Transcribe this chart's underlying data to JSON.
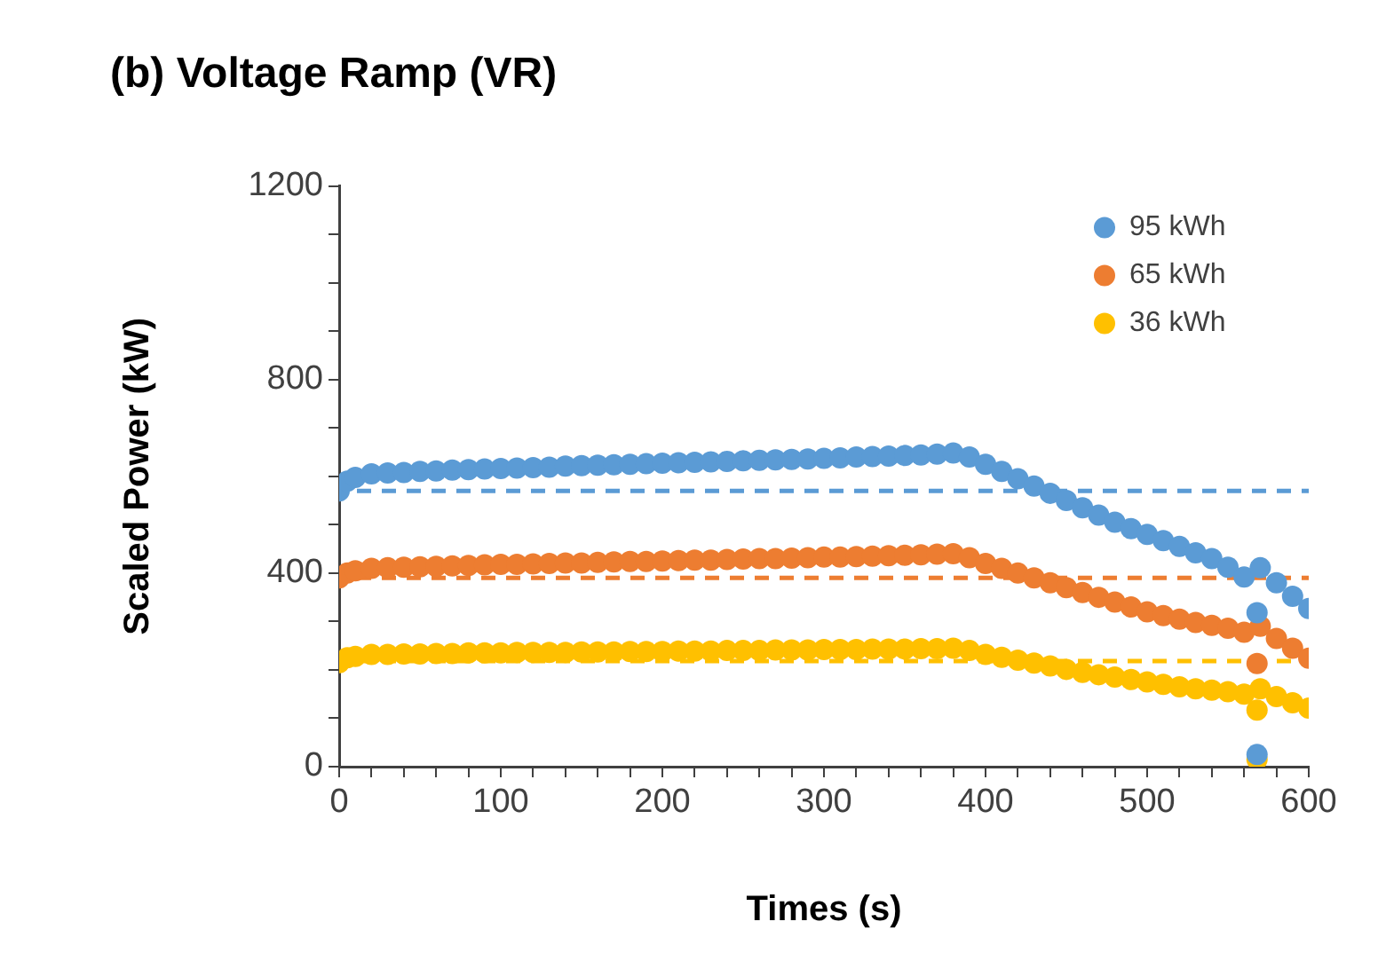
{
  "chart_data": {
    "type": "scatter",
    "title": "(b) Voltage Ramp (VR)",
    "xlabel": "Times (s)",
    "ylabel": "Scaled Power (kW)",
    "x": [
      0,
      5,
      10,
      20,
      30,
      40,
      50,
      60,
      70,
      80,
      90,
      100,
      110,
      120,
      130,
      140,
      150,
      160,
      170,
      180,
      190,
      200,
      210,
      220,
      230,
      240,
      250,
      260,
      270,
      280,
      290,
      300,
      310,
      320,
      330,
      340,
      350,
      360,
      370,
      380,
      390,
      400,
      410,
      420,
      430,
      440,
      450,
      460,
      470,
      480,
      490,
      500,
      510,
      520,
      530,
      540,
      550,
      560,
      568,
      568,
      570,
      580,
      590,
      600
    ],
    "series": [
      {
        "name": "95 kWh",
        "color": "#5b9bd5",
        "values": [
          570,
          590,
          598,
          605,
          607,
          608,
          610,
          611,
          613,
          614,
          615,
          616,
          617,
          618,
          619,
          621,
          622,
          623,
          624,
          625,
          626,
          627,
          628,
          629,
          630,
          631,
          632,
          633,
          634,
          635,
          636,
          637,
          638,
          640,
          641,
          642,
          643,
          644,
          646,
          648,
          640,
          625,
          610,
          595,
          580,
          565,
          550,
          535,
          520,
          505,
          492,
          480,
          467,
          455,
          442,
          430,
          412,
          392,
          318,
          25,
          411,
          380,
          352,
          327
        ]
      },
      {
        "name": "65 kWh",
        "color": "#ed7d31",
        "values": [
          390,
          400,
          405,
          410,
          411,
          412,
          413,
          414,
          415,
          416,
          417,
          418,
          418,
          419,
          420,
          421,
          421,
          422,
          423,
          424,
          424,
          425,
          426,
          427,
          427,
          428,
          429,
          430,
          430,
          431,
          432,
          433,
          433,
          434,
          435,
          436,
          437,
          438,
          439,
          440,
          432,
          420,
          410,
          400,
          390,
          380,
          370,
          360,
          350,
          340,
          330,
          320,
          312,
          305,
          298,
          292,
          286,
          278,
          213,
          null,
          290,
          265,
          245,
          224
        ]
      },
      {
        "name": "36 kWh",
        "color": "#ffc000",
        "values": [
          215,
          225,
          228,
          232,
          232,
          233,
          233,
          234,
          234,
          235,
          235,
          235,
          236,
          236,
          236,
          236,
          237,
          237,
          237,
          238,
          238,
          238,
          239,
          239,
          239,
          240,
          240,
          240,
          241,
          241,
          241,
          242,
          242,
          242,
          243,
          243,
          243,
          244,
          244,
          245,
          240,
          232,
          226,
          220,
          214,
          208,
          201,
          195,
          190,
          185,
          180,
          175,
          170,
          165,
          161,
          158,
          155,
          150,
          117,
          15,
          161,
          145,
          132,
          121
        ]
      }
    ],
    "xlim": [
      0,
      600
    ],
    "xticks": [
      0,
      {
        "value": 20,
        "label": null
      },
      {
        "value": 40,
        "label": null
      },
      {
        "value": 60,
        "label": null
      },
      {
        "value": 80,
        "label": null
      },
      100,
      {
        "value": 120,
        "label": null
      },
      {
        "value": 140,
        "label": null
      },
      {
        "value": 160,
        "label": null
      },
      {
        "value": 180,
        "label": null
      },
      200,
      {
        "value": 220,
        "label": null
      },
      {
        "value": 240,
        "label": null
      },
      {
        "value": 260,
        "label": null
      },
      {
        "value": 280,
        "label": null
      },
      300,
      {
        "value": 320,
        "label": null
      },
      {
        "value": 340,
        "label": null
      },
      {
        "value": 360,
        "label": null
      },
      {
        "value": 380,
        "label": null
      },
      400,
      {
        "value": 420,
        "label": null
      },
      {
        "value": 440,
        "label": null
      },
      {
        "value": 460,
        "label": null
      },
      {
        "value": 480,
        "label": null
      },
      500,
      {
        "value": 520,
        "label": null
      },
      {
        "value": 540,
        "label": null
      },
      {
        "value": 560,
        "label": null
      },
      {
        "value": 580,
        "label": null
      },
      600
    ],
    "ylim": [
      0,
      1200
    ],
    "yticks": [
      0,
      {
        "value": 100,
        "label": null
      },
      {
        "value": 200,
        "label": null
      },
      {
        "value": 300,
        "label": null
      },
      400,
      {
        "value": 500,
        "label": null
      },
      {
        "value": 600,
        "label": null
      },
      {
        "value": 700,
        "label": null
      },
      800,
      {
        "value": 900,
        "label": null
      },
      {
        "value": 1000,
        "label": null
      },
      {
        "value": 1100,
        "label": null
      },
      1200
    ],
    "ref_lines": [
      {
        "axis": "y",
        "value": 570,
        "color": "#5b9bd5",
        "line_style": "dashed"
      },
      {
        "axis": "y",
        "value": 390,
        "color": "#ed7d31",
        "line_style": "dashed"
      },
      {
        "axis": "y",
        "value": 218,
        "color": "#ffc000",
        "line_style": "dashed"
      }
    ],
    "marker": "circle",
    "legend": "top right",
    "grid": false
  }
}
